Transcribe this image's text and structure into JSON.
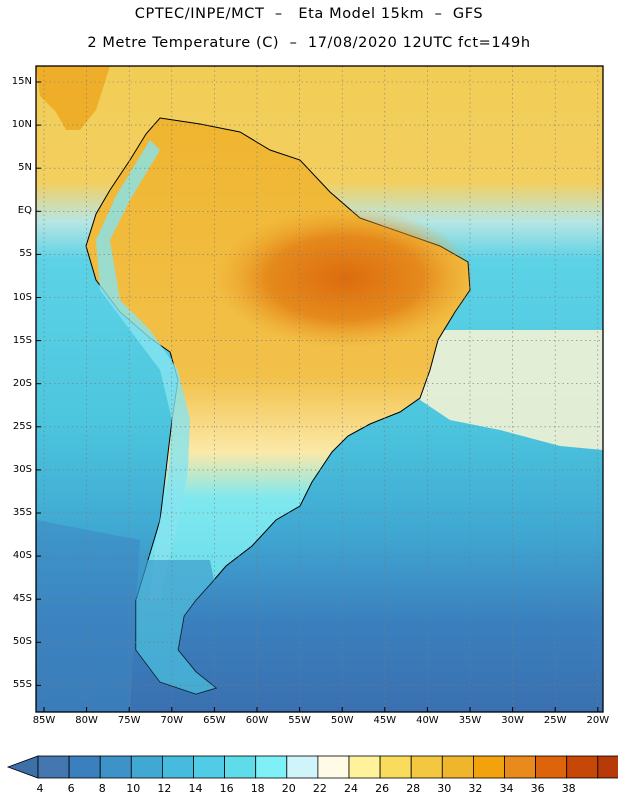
{
  "header": {
    "title_line1": "CPTEC/INPE/MCT  –   Eta Model 15km  –  GFS",
    "title_line2": "2 Metre Temperature (C)  –  17/08/2020 12UTC fct=149h"
  },
  "map": {
    "latitude_labels": [
      "15N",
      "10N",
      "5N",
      "EQ",
      "5S",
      "10S",
      "15S",
      "20S",
      "25S",
      "30S",
      "35S",
      "40S",
      "45S",
      "50S",
      "55S"
    ],
    "longitude_labels": [
      "85W",
      "80W",
      "75W",
      "70W",
      "65W",
      "60W",
      "55W",
      "50W",
      "45W",
      "40W",
      "35W",
      "30W",
      "25W",
      "20W"
    ],
    "ocean_color": "#4cc6de",
    "continent_warm_color": "#f0b429"
  },
  "colorbar": {
    "labels": [
      "4",
      "6",
      "8",
      "10",
      "12",
      "14",
      "16",
      "18",
      "20",
      "22",
      "24",
      "26",
      "28",
      "30",
      "32",
      "34",
      "36",
      "38"
    ],
    "colors": [
      "#4476b0",
      "#3a7fbe",
      "#3d93c8",
      "#41a8d4",
      "#47bbde",
      "#50cce6",
      "#5fdcea",
      "#7ff0f5",
      "#cff4fa",
      "#fffbe6",
      "#fff29a",
      "#f9dc5c",
      "#f4c740",
      "#efb52c",
      "#f2a20c",
      "#e98a1c",
      "#dd640a",
      "#c64706",
      "#b83a08"
    ],
    "low_arrow_color": "#3d6fa8",
    "high_arrow_color": "#b83a08"
  }
}
